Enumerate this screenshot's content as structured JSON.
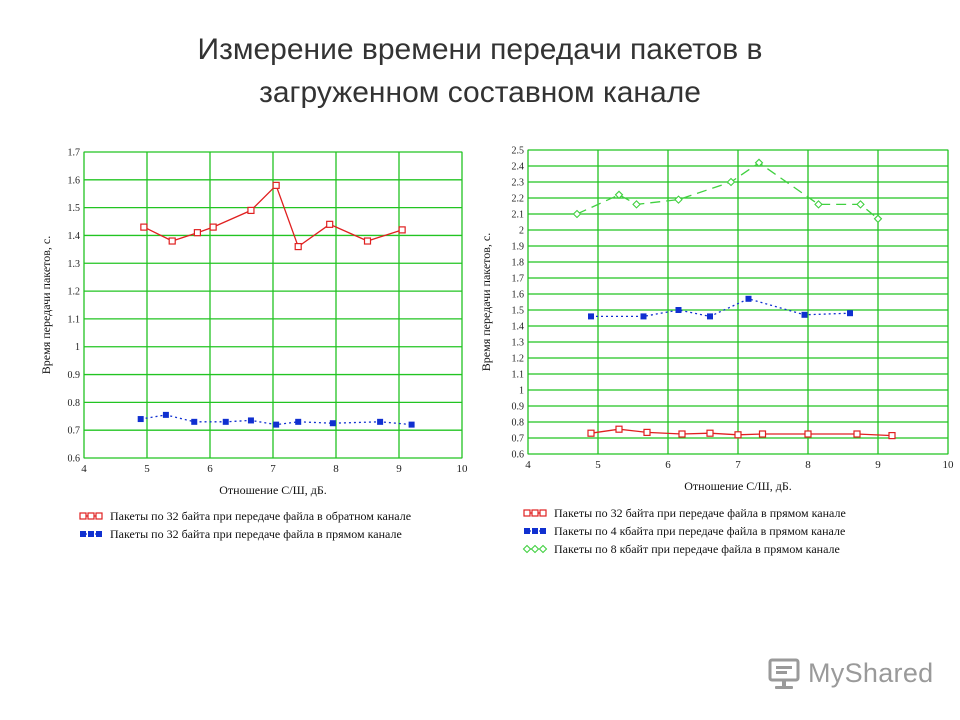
{
  "slide": {
    "title": "Измерение времени передачи пакетов в загруженном составном канале"
  },
  "colors": {
    "grid": "#22c422",
    "frame": "#7f7f7f",
    "red": "#e02020",
    "blue": "#1030d0",
    "green": "#40d040",
    "watermark": "#9a9a9a"
  },
  "chart_data": [
    {
      "type": "line",
      "ylabel": "Время передачи пакетов, с.",
      "xlabel": "Отношение С/Ш, дБ.",
      "xlim": [
        4,
        10
      ],
      "ylim": [
        0.6,
        1.7
      ],
      "xticks": [
        "4",
        "5",
        "6",
        "7",
        "8",
        "9",
        "10"
      ],
      "yticks": [
        "0.6",
        "0.7",
        "0.8",
        "0.9",
        "1",
        "1.1",
        "1.2",
        "1.3",
        "1.4",
        "1.5",
        "1.6",
        "1.7"
      ],
      "grid": true,
      "legend_position": "bottom",
      "series": [
        {
          "name": "Пакеты по 32 байта при передаче файла в обратном канале",
          "color": "#e02020",
          "marker": "square-open",
          "line": "solid",
          "x": [
            4.95,
            5.4,
            5.8,
            6.05,
            6.65,
            7.05,
            7.4,
            7.9,
            8.5,
            9.05
          ],
          "y": [
            1.43,
            1.38,
            1.41,
            1.43,
            1.49,
            1.58,
            1.36,
            1.44,
            1.38,
            1.42
          ]
        },
        {
          "name": "Пакеты по 32 байта при передаче файла в прямом канале",
          "color": "#1030d0",
          "marker": "square-filled",
          "line": "dotted",
          "x": [
            4.9,
            5.3,
            5.75,
            6.25,
            6.65,
            7.05,
            7.4,
            7.95,
            8.7,
            9.2
          ],
          "y": [
            0.74,
            0.755,
            0.73,
            0.73,
            0.735,
            0.72,
            0.73,
            0.725,
            0.73,
            0.72
          ]
        }
      ]
    },
    {
      "type": "line",
      "ylabel": "Время передачи пакетов, с.",
      "xlabel": "Отношение С/Ш, дБ.",
      "xlim": [
        4,
        10
      ],
      "ylim": [
        0.6,
        2.5
      ],
      "xticks": [
        "4",
        "5",
        "6",
        "7",
        "8",
        "9",
        "10"
      ],
      "yticks": [
        "0.6",
        "0.7",
        "0.8",
        "0.9",
        "1",
        "1.1",
        "1.2",
        "1.3",
        "1.4",
        "1.5",
        "1.6",
        "1.7",
        "1.8",
        "1.9",
        "2",
        "2.1",
        "2.2",
        "2.3",
        "2.4",
        "2.5"
      ],
      "grid": true,
      "legend_position": "bottom",
      "series": [
        {
          "name": "Пакеты по 32 байта при передаче файла в прямом канале",
          "color": "#e02020",
          "marker": "square-open",
          "line": "solid",
          "x": [
            4.9,
            5.3,
            5.7,
            6.2,
            6.6,
            7.0,
            7.35,
            8.0,
            8.7,
            9.2
          ],
          "y": [
            0.73,
            0.755,
            0.735,
            0.725,
            0.73,
            0.72,
            0.725,
            0.725,
            0.725,
            0.715
          ]
        },
        {
          "name": "Пакеты по 4 кбайта при передаче файла в прямом канале",
          "color": "#1030d0",
          "marker": "square-filled",
          "line": "dotted",
          "x": [
            4.9,
            5.65,
            6.15,
            6.6,
            7.15,
            7.95,
            8.6
          ],
          "y": [
            1.46,
            1.46,
            1.5,
            1.46,
            1.57,
            1.47,
            1.48
          ]
        },
        {
          "name": "Пакеты по 8 кбайт при передаче файла в прямом канале",
          "color": "#40d040",
          "marker": "diamond-open",
          "line": "dashed",
          "x": [
            4.7,
            5.3,
            5.55,
            6.15,
            6.9,
            7.3,
            8.15,
            8.75,
            9.0
          ],
          "y": [
            2.1,
            2.22,
            2.16,
            2.19,
            2.3,
            2.42,
            2.16,
            2.16,
            2.07
          ]
        }
      ]
    }
  ],
  "watermark": {
    "text": "MyShared"
  }
}
